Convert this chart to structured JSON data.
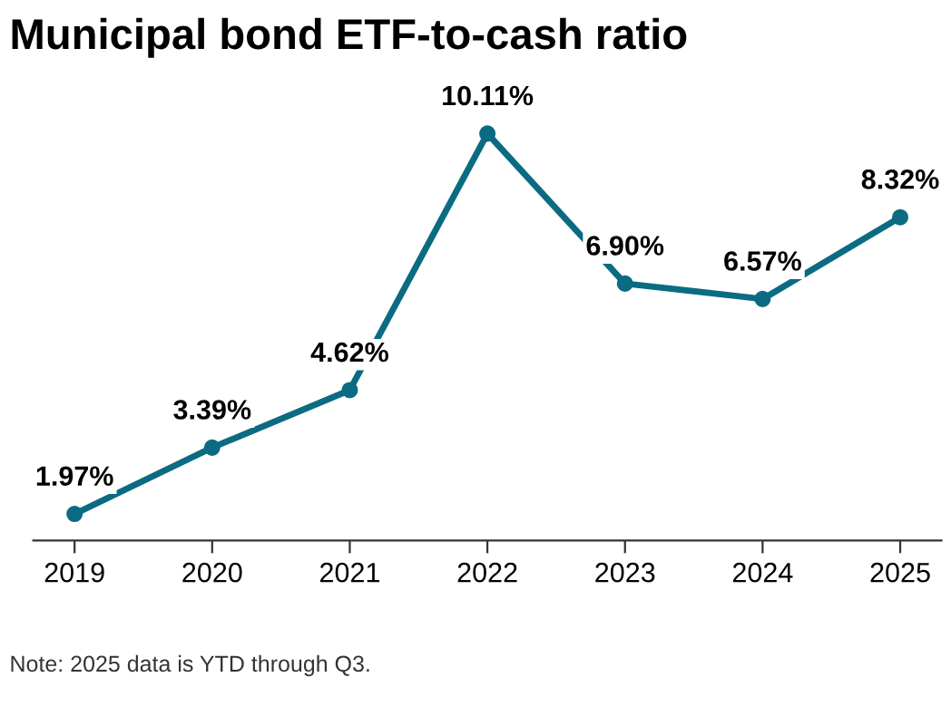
{
  "chart_data": {
    "type": "line",
    "title": "Municipal bond ETF-to-cash ratio",
    "categories": [
      "2019",
      "2020",
      "2021",
      "2022",
      "2023",
      "2024",
      "2025"
    ],
    "series": [
      {
        "color": "#0b6b82",
        "values": [
          1.97,
          3.39,
          4.62,
          10.11,
          6.9,
          6.57,
          8.32
        ],
        "value_labels": [
          "1.97%",
          "3.39%",
          "4.62%",
          "10.11%",
          "6.90%",
          "6.57%",
          "8.32%"
        ]
      }
    ],
    "marker": "circle",
    "line_style": "solid",
    "grid": false,
    "legend": false,
    "annotations": [
      "Note: 2025 data is YTD through Q3."
    ]
  }
}
